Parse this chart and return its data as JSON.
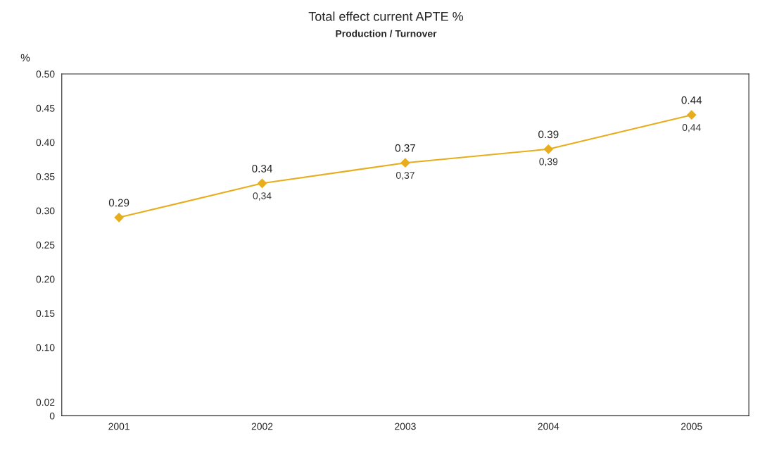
{
  "chart_data": {
    "type": "line",
    "title": "Total effect current APTE %",
    "subtitle": "Production / Turnover",
    "ylabel": "%",
    "categories": [
      "2001",
      "2002",
      "2003",
      "2004",
      "2005"
    ],
    "series": [
      {
        "color": "#e8ad1c",
        "values": [
          0.29,
          0.34,
          0.37,
          0.39,
          0.44
        ],
        "value_labels": [
          "0.29",
          "0.34",
          "0.37",
          "0.39",
          "0.44"
        ]
      }
    ],
    "annotations": [
      {
        "text": "0,34",
        "x": "2002",
        "y": 0.34
      },
      {
        "text": "0,37",
        "x": "2003",
        "y": 0.37
      },
      {
        "text": "0,39",
        "x": "2004",
        "y": 0.39
      },
      {
        "text": "0,44",
        "x": "2005",
        "y": 0.44
      }
    ],
    "ylim": [
      0,
      0.5
    ],
    "yticks": [
      0,
      0.02,
      {
        "value": 0.1,
        "label": "0.10"
      },
      0.15,
      {
        "value": 0.2,
        "label": "0.20"
      },
      0.25,
      {
        "value": 0.3,
        "label": "0.30"
      },
      0.35,
      {
        "value": 0.4,
        "label": "0.40"
      },
      0.45,
      {
        "value": 0.5,
        "label": "0.50"
      }
    ],
    "marker": "diamond",
    "line_style": "solid",
    "grid": false,
    "legend": false
  }
}
